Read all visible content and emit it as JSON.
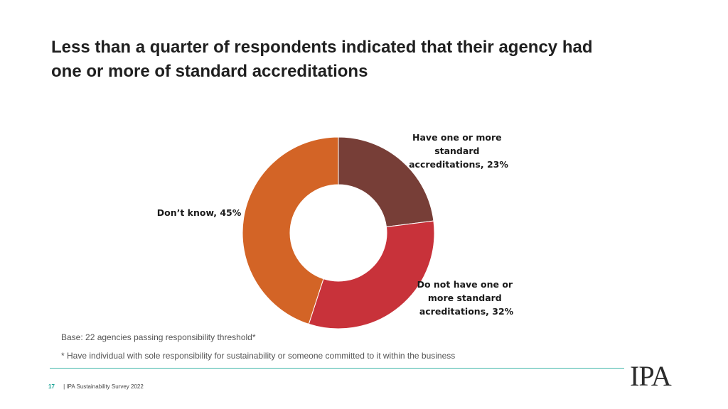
{
  "title": {
    "line1": "Less than a quarter of respondents indicated that their agency had",
    "line2": "one or more of standard accreditations"
  },
  "chart_data": {
    "type": "pie",
    "variant": "donut",
    "categories": [
      "Have one or more standard accreditations",
      "Do not have one or more standard acreditations",
      "Don’t know"
    ],
    "values": [
      23,
      32,
      45
    ],
    "unit": "%",
    "colors": [
      "#773e37",
      "#c8323a",
      "#d36426"
    ],
    "labels": [
      [
        "Have one or more",
        "standard",
        "accreditations, 23%"
      ],
      [
        "Do not have one or",
        "more standard",
        "acreditations, 32%"
      ],
      [
        "Don’t know, 45%"
      ]
    ]
  },
  "notes": {
    "base": "Base: 22 agencies passing responsibility threshold*",
    "footnote": "* Have individual with sole responsibility for sustainability or someone committed to it within the business"
  },
  "footer": {
    "page_number": "17",
    "source": "| IPA Sustainability Survey 2022"
  },
  "logo": {
    "text": "IPA"
  }
}
